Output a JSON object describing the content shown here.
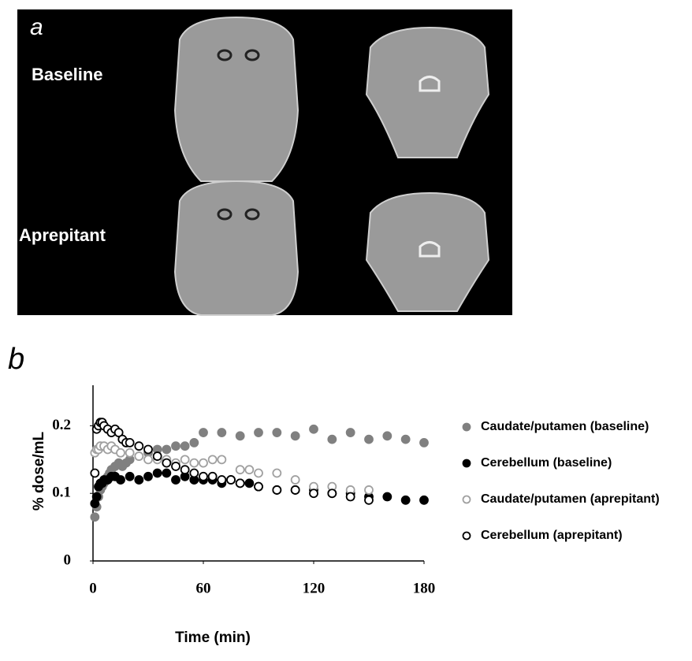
{
  "panel_a": {
    "label": "a",
    "rows": [
      "Baseline",
      "Aprepitant"
    ]
  },
  "chart_data": {
    "type": "scatter",
    "panel_label": "b",
    "x_label": "Time (min)",
    "y_label": "% dose/mL",
    "xlim": [
      0,
      180
    ],
    "xticks": [
      0,
      60,
      120,
      180
    ],
    "ylim": [
      0,
      0.26
    ],
    "yticks": [
      0,
      0.1,
      0.2
    ],
    "legend": "right",
    "series": [
      {
        "name": "Caudate/putamen (baseline)",
        "color": "#808080",
        "marker": "filled",
        "x": [
          1,
          2,
          3,
          4,
          5,
          6,
          7,
          8,
          9,
          10,
          12,
          14,
          16,
          18,
          20,
          25,
          30,
          35,
          40,
          45,
          50,
          55,
          60,
          70,
          80,
          90,
          100,
          110,
          120,
          130,
          140,
          150,
          160,
          170,
          180
        ],
        "values": [
          0.065,
          0.08,
          0.095,
          0.105,
          0.11,
          0.115,
          0.12,
          0.125,
          0.13,
          0.135,
          0.14,
          0.145,
          0.14,
          0.145,
          0.15,
          0.155,
          0.16,
          0.165,
          0.165,
          0.17,
          0.17,
          0.175,
          0.19,
          0.19,
          0.185,
          0.19,
          0.19,
          0.185,
          0.195,
          0.18,
          0.19,
          0.18,
          0.185,
          0.18,
          0.175
        ]
      },
      {
        "name": "Cerebellum (baseline)",
        "color": "#000000",
        "marker": "filled",
        "x": [
          1,
          2,
          3,
          4,
          5,
          6,
          8,
          10,
          12,
          15,
          20,
          25,
          30,
          35,
          40,
          45,
          50,
          55,
          60,
          65,
          70,
          75,
          80,
          85,
          90,
          100,
          110,
          120,
          130,
          140,
          150,
          160,
          170,
          180
        ],
        "values": [
          0.085,
          0.095,
          0.11,
          0.115,
          0.115,
          0.12,
          0.12,
          0.125,
          0.125,
          0.12,
          0.125,
          0.12,
          0.125,
          0.13,
          0.13,
          0.12,
          0.125,
          0.12,
          0.12,
          0.12,
          0.115,
          0.12,
          0.115,
          0.115,
          0.11,
          0.105,
          0.105,
          0.105,
          0.1,
          0.1,
          0.095,
          0.095,
          0.09,
          0.09
        ]
      },
      {
        "name": "Caudate/putamen (aprepitant)",
        "color": "#a0a0a0",
        "marker": "open",
        "x": [
          1,
          2,
          3,
          4,
          6,
          8,
          10,
          12,
          15,
          20,
          25,
          30,
          35,
          40,
          45,
          50,
          55,
          60,
          65,
          70,
          80,
          85,
          90,
          100,
          110,
          120,
          130,
          140,
          150
        ],
        "values": [
          0.16,
          0.165,
          0.165,
          0.17,
          0.17,
          0.165,
          0.17,
          0.165,
          0.16,
          0.16,
          0.155,
          0.15,
          0.15,
          0.15,
          0.145,
          0.15,
          0.145,
          0.145,
          0.15,
          0.15,
          0.135,
          0.135,
          0.13,
          0.13,
          0.12,
          0.11,
          0.11,
          0.105,
          0.105
        ]
      },
      {
        "name": "Cerebellum (aprepitant)",
        "color": "#000000",
        "marker": "open",
        "x": [
          1,
          2,
          3,
          4,
          5,
          6,
          8,
          10,
          12,
          14,
          16,
          18,
          20,
          25,
          30,
          35,
          40,
          45,
          50,
          55,
          60,
          65,
          70,
          75,
          80,
          90,
          100,
          110,
          120,
          130,
          140,
          150
        ],
        "values": [
          0.13,
          0.195,
          0.2,
          0.205,
          0.205,
          0.2,
          0.195,
          0.19,
          0.195,
          0.19,
          0.18,
          0.175,
          0.175,
          0.17,
          0.165,
          0.155,
          0.145,
          0.14,
          0.135,
          0.13,
          0.125,
          0.125,
          0.12,
          0.12,
          0.115,
          0.11,
          0.105,
          0.105,
          0.1,
          0.1,
          0.095,
          0.09
        ]
      }
    ]
  }
}
